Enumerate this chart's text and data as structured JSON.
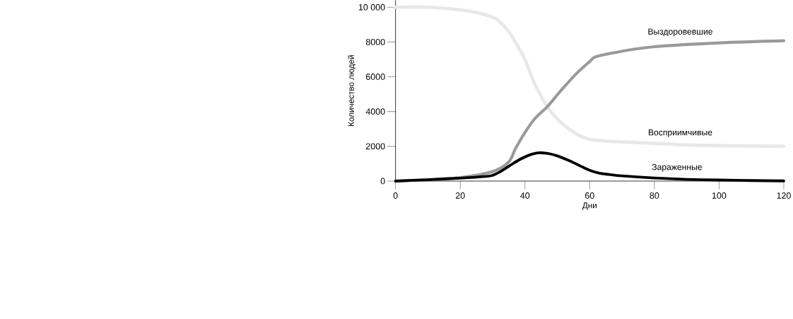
{
  "chart_data": {
    "type": "line",
    "xlabel": "Дни",
    "ylabel": "Количество людей",
    "xlim": [
      0,
      120
    ],
    "ylim": [
      0,
      10400
    ],
    "xticks": [
      0,
      20,
      40,
      60,
      80,
      100,
      120
    ],
    "yticks": [
      0,
      2000,
      4000,
      6000,
      8000,
      {
        "value": 10000,
        "label": "10 000"
      }
    ],
    "grid": false,
    "legend": false,
    "marker": "none",
    "line_style": "solid",
    "series": [
      {
        "name": "Восприимчивые",
        "color": "#e8e8e8",
        "x": [
          0,
          10,
          20,
          25,
          30,
          32,
          35,
          37,
          40,
          43,
          47,
          51,
          56,
          60,
          65,
          70,
          80,
          90,
          100,
          120
        ],
        "values": [
          10000,
          10000,
          9850,
          9700,
          9430,
          9200,
          8600,
          8000,
          7000,
          5600,
          4250,
          3400,
          2700,
          2400,
          2300,
          2250,
          2170,
          2080,
          2040,
          2000
        ]
      },
      {
        "name": "Выздоровевшие",
        "color": "#9a9a9a",
        "x": [
          0,
          10,
          20,
          30,
          35,
          37,
          40,
          43,
          47,
          51,
          56,
          60,
          62,
          70,
          80,
          100,
          120
        ],
        "values": [
          0,
          80,
          200,
          550,
          1100,
          1840,
          2790,
          3580,
          4300,
          5180,
          6200,
          6870,
          7160,
          7470,
          7730,
          7950,
          8070
        ]
      },
      {
        "name": "Зараженные",
        "color": "#000000",
        "x": [
          0,
          10,
          20,
          28,
          30,
          32,
          35,
          38,
          41,
          44,
          47,
          50,
          54,
          57,
          60,
          63,
          66,
          70,
          80,
          90,
          100,
          110,
          120
        ],
        "values": [
          0,
          80,
          170,
          270,
          330,
          500,
          850,
          1200,
          1470,
          1620,
          1590,
          1450,
          1150,
          880,
          620,
          450,
          380,
          300,
          180,
          100,
          60,
          30,
          10
        ]
      }
    ]
  }
}
